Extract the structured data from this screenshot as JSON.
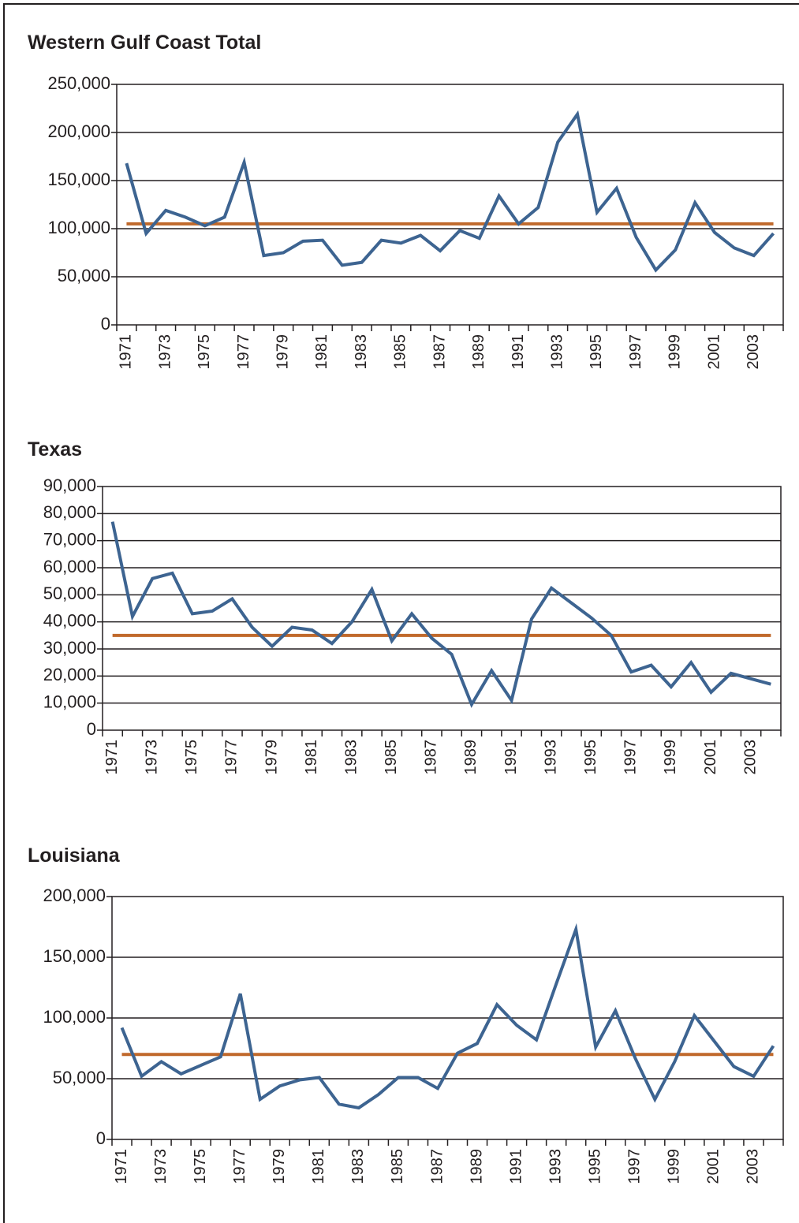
{
  "chart_data": [
    {
      "type": "line",
      "title": "Western Gulf Coast Total",
      "categories": [
        "1971",
        null,
        "1973",
        null,
        "1975",
        null,
        "1977",
        null,
        "1979",
        null,
        "1981",
        null,
        "1983",
        null,
        "1985",
        null,
        "1987",
        null,
        "1989",
        null,
        "1991",
        null,
        "1993",
        null,
        "1995",
        null,
        "1997",
        null,
        "1999",
        null,
        "2001",
        null,
        "2003",
        null
      ],
      "series": [
        {
          "color": "#3d6491",
          "values": [
            168000,
            95000,
            119000,
            112000,
            103000,
            112000,
            169000,
            72000,
            75000,
            87000,
            88000,
            62000,
            65000,
            88000,
            85000,
            93000,
            77000,
            98000,
            90000,
            134000,
            105000,
            122000,
            190000,
            219000,
            117000,
            142000,
            91000,
            57000,
            78000,
            127000,
            96000,
            80000,
            72000,
            95000
          ]
        }
      ],
      "mean_line": {
        "value": 105000,
        "color": "#c0692b"
      },
      "ylim": [
        0,
        250000
      ],
      "yticks": [
        0,
        {
          "value": 50000,
          "label": "50,000"
        },
        {
          "value": 100000,
          "label": "100,000"
        },
        {
          "value": 150000,
          "label": "150,000"
        },
        {
          "value": 200000,
          "label": "200,000"
        },
        {
          "value": 250000,
          "label": "250,000"
        }
      ],
      "grid": true
    },
    {
      "type": "line",
      "title": "Texas",
      "categories": [
        "1971",
        null,
        "1973",
        null,
        "1975",
        null,
        "1977",
        null,
        "1979",
        null,
        "1981",
        null,
        "1983",
        null,
        "1985",
        null,
        "1987",
        null,
        "1989",
        null,
        "1991",
        null,
        "1993",
        null,
        "1995",
        null,
        "1997",
        null,
        "1999",
        null,
        "2001",
        null,
        "2003",
        null
      ],
      "series": [
        {
          "color": "#3d6491",
          "values": [
            77000,
            42000,
            56000,
            58000,
            43000,
            44000,
            48500,
            38000,
            31000,
            38000,
            37000,
            32000,
            40000,
            52000,
            33000,
            43000,
            34000,
            28000,
            9500,
            22000,
            11000,
            41000,
            52500,
            47000,
            41500,
            35000,
            21500,
            24000,
            16000,
            25000,
            14000,
            21000,
            19000,
            17000
          ]
        }
      ],
      "mean_line": {
        "value": 35000,
        "color": "#c0692b"
      },
      "ylim": [
        0,
        90000
      ],
      "yticks": [
        0,
        {
          "value": 10000,
          "label": "10,000"
        },
        {
          "value": 20000,
          "label": "20,000"
        },
        {
          "value": 30000,
          "label": "30,000"
        },
        {
          "value": 40000,
          "label": "40,000"
        },
        {
          "value": 50000,
          "label": "50,000"
        },
        {
          "value": 60000,
          "label": "60,000"
        },
        {
          "value": 70000,
          "label": "70,000"
        },
        {
          "value": 80000,
          "label": "80,000"
        },
        {
          "value": 90000,
          "label": "90,000"
        }
      ],
      "grid": true
    },
    {
      "type": "line",
      "title": "Louisiana",
      "categories": [
        "1971",
        null,
        "1973",
        null,
        "1975",
        null,
        "1977",
        null,
        "1979",
        null,
        "1981",
        null,
        "1983",
        null,
        "1985",
        null,
        "1987",
        null,
        "1989",
        null,
        "1991",
        null,
        "1993",
        null,
        "1995",
        null,
        "1997",
        null,
        "1999",
        null,
        "2001",
        null,
        "2003",
        null
      ],
      "series": [
        {
          "color": "#3d6491",
          "values": [
            92000,
            52000,
            64000,
            54000,
            61000,
            68000,
            120000,
            33000,
            44000,
            49000,
            51000,
            29000,
            26000,
            37000,
            51000,
            51000,
            42000,
            71000,
            79000,
            111000,
            94000,
            82000,
            128000,
            173000,
            76000,
            106000,
            67000,
            33000,
            64000,
            102000,
            81000,
            60000,
            52000,
            77000
          ]
        }
      ],
      "mean_line": {
        "value": 70000,
        "color": "#c0692b"
      },
      "ylim": [
        0,
        200000
      ],
      "yticks": [
        0,
        {
          "value": 50000,
          "label": "50,000"
        },
        {
          "value": 100000,
          "label": "100,000"
        },
        {
          "value": 150000,
          "label": "150,000"
        },
        {
          "value": 200000,
          "label": "200,000"
        }
      ],
      "grid": true
    }
  ]
}
